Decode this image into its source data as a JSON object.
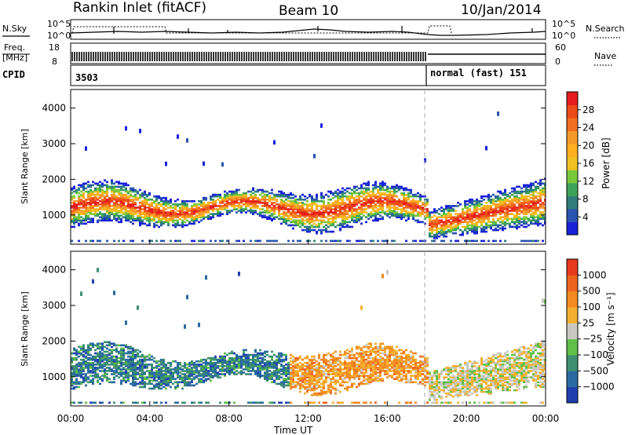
{
  "header": {
    "station": "Rankin Inlet (fitACF)",
    "beam": "Beam 10",
    "date": "10/Jan/2014"
  },
  "strips": {
    "nsky": {
      "label": "N.Sky",
      "ticks_left": [
        "10^5",
        "10^0"
      ],
      "ticks_right": [
        "10^5",
        "10^0"
      ],
      "right_label": "N.Search"
    },
    "freq": {
      "label_top": "Freq.",
      "label_unit": "[MHz]",
      "ticks_left": [
        "18",
        "8"
      ],
      "ticks_right": [
        "60",
        "0"
      ],
      "right_label": "Nave"
    },
    "cpid": {
      "label": "CPID",
      "segments": [
        {
          "text": "3503"
        },
        {
          "text": "normal (fast) 151"
        }
      ]
    }
  },
  "time_axis": {
    "title": "Time UT",
    "ticks": [
      "00:00",
      "04:00",
      "08:00",
      "12:00",
      "16:00",
      "20:00",
      "00:00"
    ]
  },
  "chart_data": [
    {
      "type": "heatmap",
      "parameter": "Power",
      "ylabel": "Slant Range [km]",
      "ylim": [
        180,
        4520
      ],
      "yticks": [
        1000,
        2000,
        3000,
        4000
      ],
      "xlim_hours": [
        0,
        24
      ],
      "colorbar": {
        "title": "Power [dB]",
        "ticks": [
          "28",
          "24",
          "20",
          "16",
          "12",
          "8",
          "4"
        ],
        "colors": [
          "#1a22d8",
          "#2a54b0",
          "#2e7d7a",
          "#3ea35a",
          "#7cc83c",
          "#f0c020",
          "#ffb020",
          "#f59a2a",
          "#f07020",
          "#ec4a1a",
          "#e51c1c"
        ],
        "range": [
          0,
          30
        ]
      },
      "dashed_marker_hour": 18.0
    },
    {
      "type": "heatmap",
      "parameter": "Velocity",
      "ylabel": "Slant Range [km]",
      "ylim": [
        180,
        4520
      ],
      "yticks": [
        1000,
        2000,
        3000,
        4000
      ],
      "xlim_hours": [
        0,
        24
      ],
      "colorbar": {
        "title": "Velocity [m s⁻¹]",
        "ticks": [
          "1000",
          "500",
          "100",
          "25",
          "−25",
          "−100",
          "−500",
          "−1000"
        ],
        "colors": [
          "#1f3fb0",
          "#2a6aa0",
          "#3d9070",
          "#5fbf48",
          "#c8c8c0",
          "#f3b030",
          "#f38a22",
          "#ec6420",
          "#e53a1c"
        ]
      },
      "dashed_marker_hour": 18.0
    }
  ]
}
